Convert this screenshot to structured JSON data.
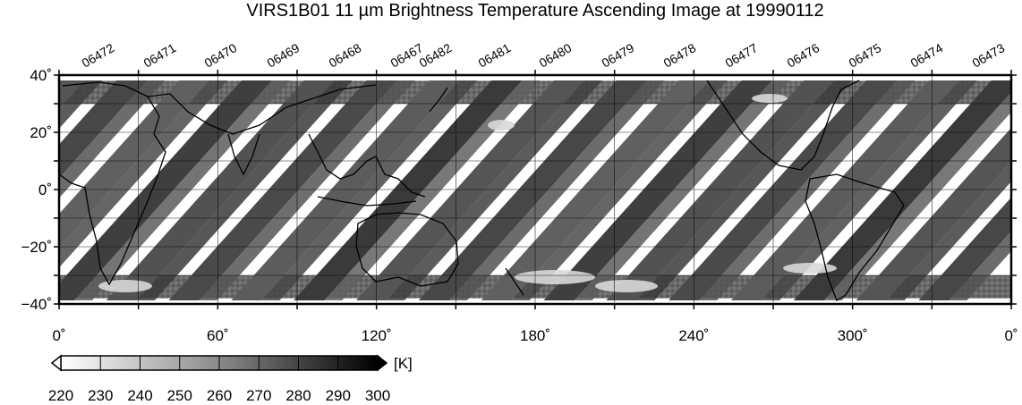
{
  "title": "VIRS1B01 11 µm Brightness Temperature Ascending Image at 19990112",
  "orbits": [
    "06472",
    "06471",
    "06470",
    "06469",
    "06468",
    "06467",
    "06482",
    "06481",
    "06480",
    "06479",
    "06478",
    "06477",
    "06476",
    "06475",
    "06474",
    "06473"
  ],
  "map": {
    "lon_range": [
      0,
      360
    ],
    "lat_range": [
      -40,
      40
    ],
    "x_ticks": [
      "0˚",
      "60˚",
      "120˚",
      "180˚",
      "240˚",
      "300˚",
      "0˚"
    ],
    "y_ticks": [
      "40˚",
      "20˚",
      "0˚",
      "−20˚",
      "−40˚"
    ],
    "grid_spacing_deg": 30
  },
  "colorbar": {
    "unit": "[K]",
    "ticks": [
      "220",
      "230",
      "240",
      "250",
      "260",
      "270",
      "280",
      "290",
      "300"
    ],
    "range": [
      220,
      300
    ],
    "colors": [
      "#ffffff",
      "#000000"
    ]
  }
}
